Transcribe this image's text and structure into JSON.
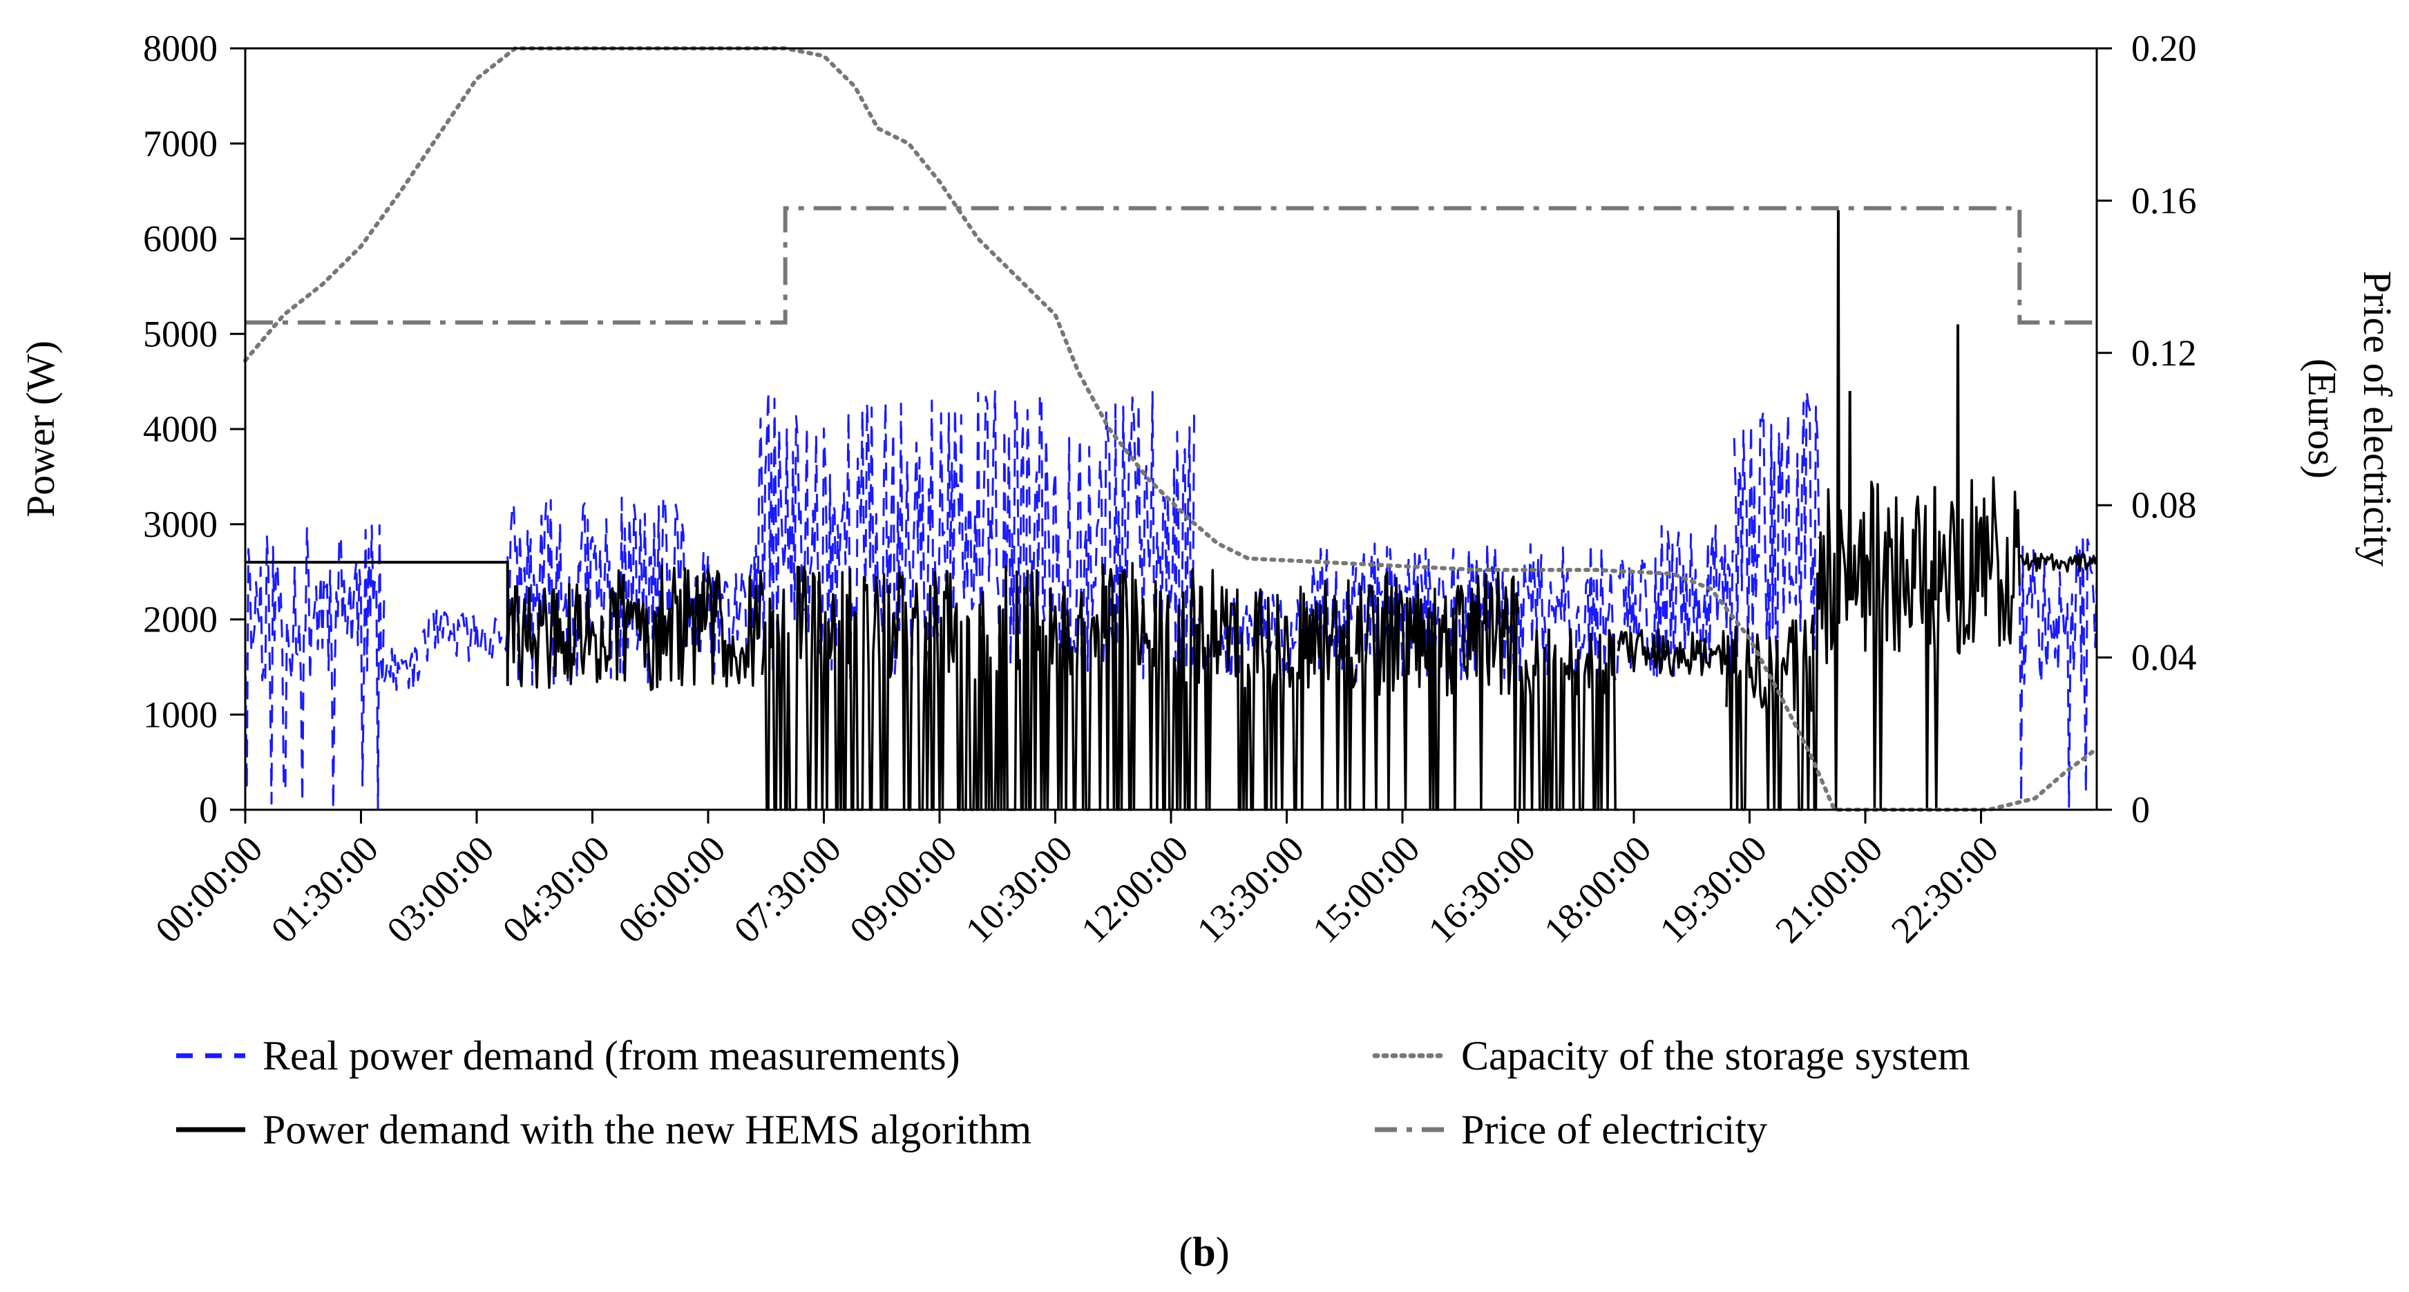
{
  "chart_data": {
    "type": "line",
    "caption": {
      "open": "(",
      "letter": "b",
      "close": ")"
    },
    "x_tick_labels": [
      "00:00:00",
      "01:30:00",
      "03:00:00",
      "04:30:00",
      "06:00:00",
      "07:30:00",
      "09:00:00",
      "10:30:00",
      "12:00:00",
      "13:30:00",
      "15:00:00",
      "16:30:00",
      "18:00:00",
      "19:30:00",
      "21:00:00",
      "22:30:00"
    ],
    "x_range_hours": [
      0,
      24
    ],
    "y_left": {
      "label": "Power (W)",
      "range": [
        0,
        8000
      ],
      "ticks": [
        0,
        1000,
        2000,
        3000,
        4000,
        5000,
        6000,
        7000,
        8000
      ]
    },
    "y_right": {
      "label_line1": "Price of electricity",
      "label_line2": "(Euros)",
      "range": [
        0,
        0.2
      ],
      "ticks": [
        "0",
        "0.04",
        "0.08",
        "0.12",
        "0.16",
        "0.20"
      ]
    },
    "legend": [
      {
        "key": "real",
        "label": "Real power demand (from measurements)",
        "color": "#1a1aff",
        "style": "dashed"
      },
      {
        "key": "capacity",
        "label": "Capacity of the storage system",
        "color": "#777777",
        "style": "dotted"
      },
      {
        "key": "hems",
        "label": "Power demand with the new HEMS algorithm",
        "color": "#000000",
        "style": "solid"
      },
      {
        "key": "price",
        "label": "Price of electricity",
        "color": "#777777",
        "style": "dashdot"
      }
    ],
    "series": [
      {
        "name": "Real power demand (from measurements)",
        "axis": "left",
        "generator": {
          "seed": 11,
          "step_hours": 0.02
        },
        "segments": [
          {
            "from": 0.0,
            "to": 1.8,
            "low": 1300,
            "high": 3000,
            "dip_prob": 0.08
          },
          {
            "from": 1.8,
            "to": 2.3,
            "low": 1250,
            "high": 1700,
            "dip_prob": 0.0
          },
          {
            "from": 2.3,
            "to": 3.4,
            "low": 1550,
            "high": 2100,
            "dip_prob": 0.0
          },
          {
            "from": 3.4,
            "to": 5.8,
            "low": 1300,
            "high": 3300,
            "dip_prob": 0.0
          },
          {
            "from": 5.8,
            "to": 6.6,
            "low": 1400,
            "high": 2700,
            "dip_prob": 0.0
          },
          {
            "from": 6.6,
            "to": 12.3,
            "low": 1350,
            "high": 4400,
            "dip_prob": 0.0
          },
          {
            "from": 12.3,
            "to": 13.8,
            "low": 1350,
            "high": 2300,
            "dip_prob": 0.0
          },
          {
            "from": 13.8,
            "to": 14.4,
            "low": 1400,
            "high": 2800,
            "dip_prob": 0.0
          },
          {
            "from": 14.4,
            "to": 17.8,
            "low": 1300,
            "high": 2800,
            "dip_prob": 0.0
          },
          {
            "from": 17.8,
            "to": 19.3,
            "low": 1350,
            "high": 3000,
            "dip_prob": 0.0
          },
          {
            "from": 19.3,
            "to": 20.4,
            "low": 1500,
            "high": 4400,
            "dip_prob": 0.0
          },
          {
            "from": 23.0,
            "to": 24.0,
            "low": 1300,
            "high": 2900,
            "dip_prob": 0.05
          }
        ]
      },
      {
        "name": "Power demand with the new HEMS algorithm",
        "axis": "left",
        "generator": {
          "seed": 29,
          "step_hours": 0.02
        },
        "flat_segments": [
          {
            "from": 0.0,
            "to": 3.4,
            "value": 2600
          }
        ],
        "segments": [
          {
            "from": 3.4,
            "to": 4.8,
            "low": 1250,
            "high": 2400,
            "zero_prob": 0.0
          },
          {
            "from": 4.8,
            "to": 6.7,
            "low": 1250,
            "high": 2600,
            "zero_prob": 0.0
          },
          {
            "from": 6.7,
            "to": 12.6,
            "low": 1300,
            "high": 2600,
            "zero_prob": 0.35
          },
          {
            "from": 12.6,
            "to": 14.4,
            "low": 1250,
            "high": 2500,
            "zero_prob": 0.15
          },
          {
            "from": 14.4,
            "to": 16.5,
            "low": 1200,
            "high": 2500,
            "zero_prob": 0.12
          },
          {
            "from": 16.5,
            "to": 17.8,
            "low": 1200,
            "high": 1900,
            "zero_prob": 0.3
          },
          {
            "from": 17.8,
            "to": 19.2,
            "low": 1400,
            "high": 1900,
            "zero_prob": 0.0
          },
          {
            "from": 19.2,
            "to": 20.3,
            "low": 1000,
            "high": 2000,
            "zero_prob": 0.35
          },
          {
            "from": 20.3,
            "to": 23.0,
            "low": 1500,
            "high": 3500,
            "zero_prob": 0.03
          },
          {
            "from": 23.0,
            "to": 24.0,
            "low": 2500,
            "high": 2700,
            "zero_prob": 0.0
          }
        ],
        "spikes": [
          {
            "x": 20.65,
            "y": 6300
          },
          {
            "x": 20.8,
            "y": 4400
          },
          {
            "x": 22.2,
            "y": 5100
          },
          {
            "x": 21.9,
            "y": 3400
          }
        ]
      },
      {
        "name": "Capacity of the storage system",
        "axis": "right",
        "points": [
          [
            0.0,
            0.118
          ],
          [
            0.5,
            0.13
          ],
          [
            1.0,
            0.138
          ],
          [
            1.5,
            0.148
          ],
          [
            2.0,
            0.162
          ],
          [
            2.6,
            0.18
          ],
          [
            3.0,
            0.192
          ],
          [
            3.5,
            0.2
          ],
          [
            5.0,
            0.2
          ],
          [
            6.5,
            0.2
          ],
          [
            7.0,
            0.2
          ],
          [
            7.5,
            0.198
          ],
          [
            7.9,
            0.19
          ],
          [
            8.2,
            0.179
          ],
          [
            8.6,
            0.175
          ],
          [
            9.0,
            0.165
          ],
          [
            9.5,
            0.15
          ],
          [
            10.0,
            0.14
          ],
          [
            10.5,
            0.13
          ],
          [
            10.8,
            0.115
          ],
          [
            11.2,
            0.1
          ],
          [
            11.7,
            0.087
          ],
          [
            12.2,
            0.077
          ],
          [
            12.6,
            0.07
          ],
          [
            13.0,
            0.066
          ],
          [
            14.0,
            0.065
          ],
          [
            15.0,
            0.064
          ],
          [
            16.0,
            0.063
          ],
          [
            17.5,
            0.063
          ],
          [
            18.5,
            0.062
          ],
          [
            19.0,
            0.058
          ],
          [
            19.5,
            0.045
          ],
          [
            19.9,
            0.03
          ],
          [
            20.3,
            0.014
          ],
          [
            20.6,
            0.0
          ],
          [
            22.6,
            0.0
          ],
          [
            23.2,
            0.003
          ],
          [
            23.6,
            0.01
          ],
          [
            24.0,
            0.016
          ]
        ]
      },
      {
        "name": "Price of electricity",
        "axis": "right",
        "points": [
          [
            0.0,
            0.128
          ],
          [
            7.0,
            0.128
          ],
          [
            7.0,
            0.158
          ],
          [
            23.0,
            0.158
          ],
          [
            23.0,
            0.128
          ],
          [
            24.0,
            0.128
          ]
        ]
      }
    ]
  }
}
